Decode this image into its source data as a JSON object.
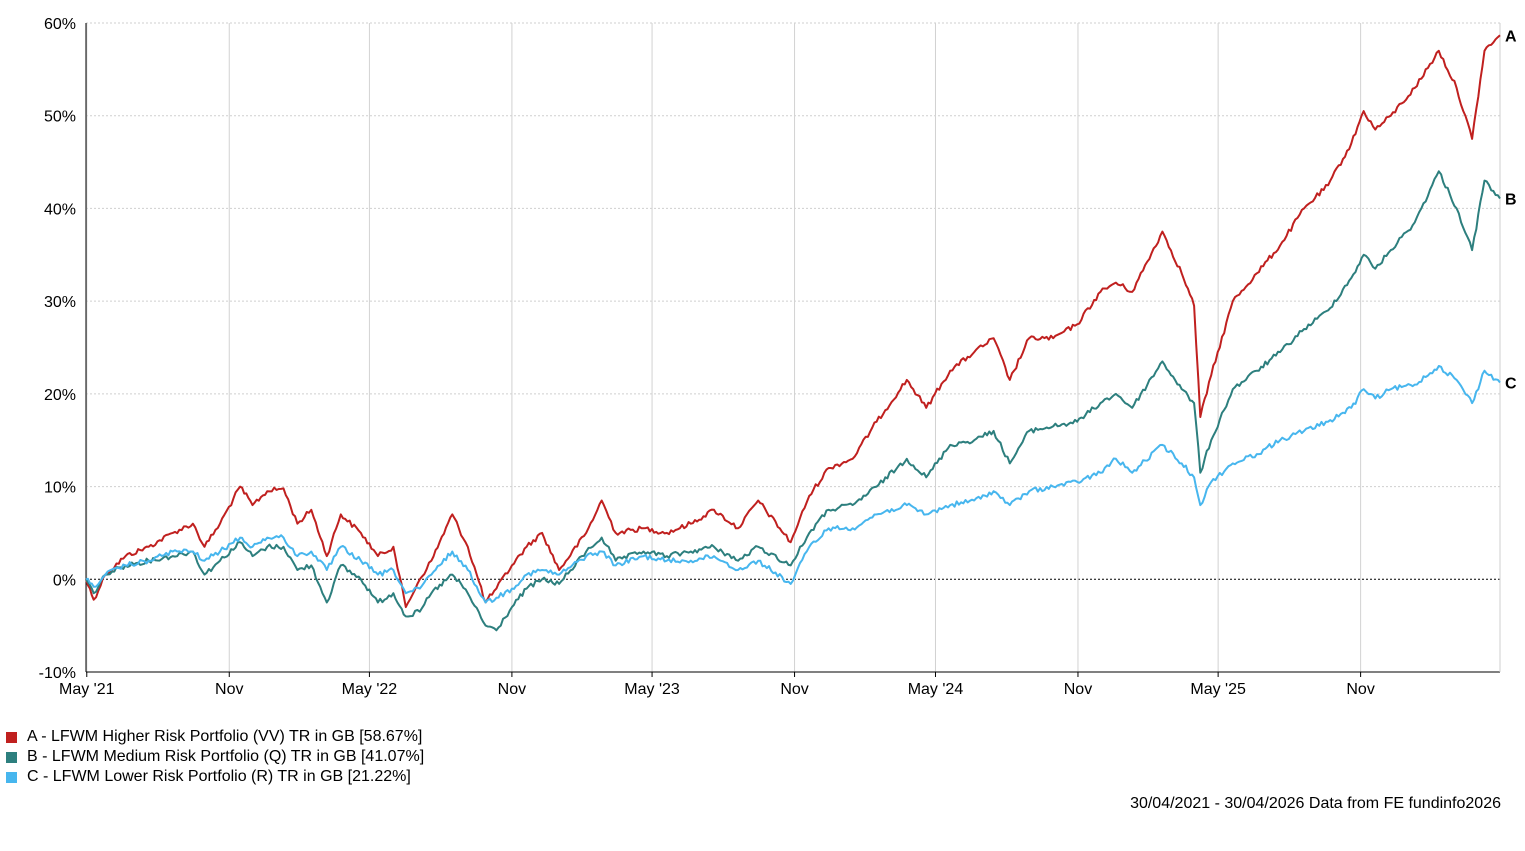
{
  "chart_data": {
    "type": "line",
    "x_range": [
      "2021-04-30",
      "2026-04-30"
    ],
    "ylim": [
      -10,
      60
    ],
    "y_ticks": [
      -10,
      0,
      10,
      20,
      30,
      40,
      50,
      60
    ],
    "y_tick_labels": [
      "-10%",
      "0%",
      "10%",
      "20%",
      "30%",
      "40%",
      "50%",
      "60%"
    ],
    "x_ticks": [
      {
        "date": "2021-05-01",
        "label": "May '21"
      },
      {
        "date": "2021-11-01",
        "label": "Nov"
      },
      {
        "date": "2022-05-01",
        "label": "May '22"
      },
      {
        "date": "2022-11-01",
        "label": "Nov"
      },
      {
        "date": "2023-05-01",
        "label": "May '23"
      },
      {
        "date": "2023-11-01",
        "label": "Nov"
      },
      {
        "date": "2024-05-01",
        "label": "May '24"
      },
      {
        "date": "2024-11-01",
        "label": "Nov"
      },
      {
        "date": "2025-05-01",
        "label": "May '25"
      },
      {
        "date": "2025-11-01",
        "label": "Nov"
      }
    ],
    "grid": true,
    "legend_position": "bottom-left",
    "series": [
      {
        "name": "A - LFWM Higher Risk Portfolio (VV) TR in GB [58.67%]",
        "end_label": "A",
        "color": "#c0201f",
        "points": [
          [
            "2021-04-30",
            0
          ],
          [
            "2021-05-10",
            -2.2
          ],
          [
            "2021-05-25",
            0.5
          ],
          [
            "2021-06-20",
            2.5
          ],
          [
            "2021-07-20",
            3.5
          ],
          [
            "2021-08-20",
            5.0
          ],
          [
            "2021-09-15",
            6.0
          ],
          [
            "2021-09-30",
            3.5
          ],
          [
            "2021-10-20",
            6.0
          ],
          [
            "2021-11-15",
            10.0
          ],
          [
            "2021-12-01",
            8.0
          ],
          [
            "2021-12-20",
            9.5
          ],
          [
            "2022-01-10",
            9.8
          ],
          [
            "2022-01-28",
            6.0
          ],
          [
            "2022-02-15",
            7.5
          ],
          [
            "2022-03-07",
            2.5
          ],
          [
            "2022-03-25",
            7.0
          ],
          [
            "2022-04-20",
            5.0
          ],
          [
            "2022-05-12",
            2.5
          ],
          [
            "2022-06-01",
            3.5
          ],
          [
            "2022-06-17",
            -3.0
          ],
          [
            "2022-07-05",
            0
          ],
          [
            "2022-07-20",
            2.0
          ],
          [
            "2022-08-16",
            7.0
          ],
          [
            "2022-09-05",
            3.5
          ],
          [
            "2022-09-28",
            -2.5
          ],
          [
            "2022-10-12",
            -1.0
          ],
          [
            "2022-11-01",
            1.5
          ],
          [
            "2022-11-20",
            3.5
          ],
          [
            "2022-12-10",
            5.0
          ],
          [
            "2023-01-01",
            1.0
          ],
          [
            "2023-02-05",
            5.0
          ],
          [
            "2023-02-25",
            8.5
          ],
          [
            "2023-03-15",
            5.0
          ],
          [
            "2023-04-20",
            5.5
          ],
          [
            "2023-05-20",
            5.0
          ],
          [
            "2023-06-20",
            6.0
          ],
          [
            "2023-07-20",
            7.5
          ],
          [
            "2023-08-20",
            5.5
          ],
          [
            "2023-09-15",
            8.5
          ],
          [
            "2023-10-27",
            4.0
          ],
          [
            "2023-11-20",
            9.0
          ],
          [
            "2023-12-15",
            12.0
          ],
          [
            "2024-01-15",
            13.0
          ],
          [
            "2024-02-15",
            17.0
          ],
          [
            "2024-03-25",
            21.5
          ],
          [
            "2024-04-19",
            18.5
          ],
          [
            "2024-05-20",
            22.5
          ],
          [
            "2024-06-20",
            24.5
          ],
          [
            "2024-07-15",
            26.0
          ],
          [
            "2024-08-05",
            21.5
          ],
          [
            "2024-08-30",
            26.0
          ],
          [
            "2024-09-30",
            26.0
          ],
          [
            "2024-10-31",
            27.5
          ],
          [
            "2024-11-30",
            31.0
          ],
          [
            "2024-12-20",
            32.0
          ],
          [
            "2025-01-10",
            31.0
          ],
          [
            "2025-02-18",
            37.5
          ],
          [
            "2025-03-15",
            33.0
          ],
          [
            "2025-03-31",
            29.5
          ],
          [
            "2025-04-08",
            17.5
          ],
          [
            "2025-04-22",
            22.0
          ],
          [
            "2025-05-20",
            30.0
          ],
          [
            "2025-06-20",
            33.0
          ],
          [
            "2025-07-20",
            36.0
          ],
          [
            "2025-08-20",
            40.0
          ],
          [
            "2025-09-20",
            42.5
          ],
          [
            "2025-10-20",
            47.0
          ],
          [
            "2025-11-05",
            50.5
          ],
          [
            "2025-11-20",
            48.5
          ],
          [
            "2025-12-10",
            50.0
          ],
          [
            "2026-01-10",
            53.0
          ],
          [
            "2026-02-10",
            57.0
          ],
          [
            "2026-03-05",
            53.0
          ],
          [
            "2026-03-25",
            47.5
          ],
          [
            "2026-04-10",
            57.0
          ],
          [
            "2026-04-30",
            58.67
          ]
        ]
      },
      {
        "name": "B - LFWM Medium Risk Portfolio (Q) TR in GB [41.07%]",
        "end_label": "B",
        "color": "#2d7f7e",
        "points": [
          [
            "2021-04-30",
            0
          ],
          [
            "2021-05-10",
            -1.5
          ],
          [
            "2021-05-25",
            0.5
          ],
          [
            "2021-06-20",
            1.5
          ],
          [
            "2021-07-20",
            2.0
          ],
          [
            "2021-08-20",
            2.5
          ],
          [
            "2021-09-15",
            3.0
          ],
          [
            "2021-09-30",
            0.5
          ],
          [
            "2021-10-20",
            2.0
          ],
          [
            "2021-11-15",
            4.0
          ],
          [
            "2021-12-01",
            2.5
          ],
          [
            "2021-12-20",
            3.5
          ],
          [
            "2022-01-10",
            3.5
          ],
          [
            "2022-01-28",
            1.0
          ],
          [
            "2022-02-15",
            1.5
          ],
          [
            "2022-03-07",
            -2.5
          ],
          [
            "2022-03-25",
            1.5
          ],
          [
            "2022-04-20",
            0
          ],
          [
            "2022-05-12",
            -2.5
          ],
          [
            "2022-06-01",
            -1.5
          ],
          [
            "2022-06-17",
            -4.0
          ],
          [
            "2022-07-05",
            -3.5
          ],
          [
            "2022-07-20",
            -1.5
          ],
          [
            "2022-08-16",
            0.5
          ],
          [
            "2022-09-05",
            -1.5
          ],
          [
            "2022-09-28",
            -5.0
          ],
          [
            "2022-10-12",
            -5.5
          ],
          [
            "2022-11-01",
            -3.0
          ],
          [
            "2022-11-20",
            -1.0
          ],
          [
            "2022-12-10",
            0
          ],
          [
            "2023-01-01",
            -0.5
          ],
          [
            "2023-02-05",
            3.0
          ],
          [
            "2023-02-25",
            4.5
          ],
          [
            "2023-03-15",
            2.0
          ],
          [
            "2023-04-20",
            3.0
          ],
          [
            "2023-05-20",
            2.5
          ],
          [
            "2023-06-20",
            3.0
          ],
          [
            "2023-07-20",
            3.5
          ],
          [
            "2023-08-20",
            2.0
          ],
          [
            "2023-09-15",
            3.5
          ],
          [
            "2023-10-27",
            1.5
          ],
          [
            "2023-11-20",
            5.0
          ],
          [
            "2023-12-15",
            7.5
          ],
          [
            "2024-01-15",
            8.0
          ],
          [
            "2024-02-15",
            10.0
          ],
          [
            "2024-03-25",
            13.0
          ],
          [
            "2024-04-19",
            11.0
          ],
          [
            "2024-05-20",
            14.5
          ],
          [
            "2024-06-20",
            15.0
          ],
          [
            "2024-07-15",
            16.0
          ],
          [
            "2024-08-05",
            12.5
          ],
          [
            "2024-08-30",
            16.0
          ],
          [
            "2024-09-30",
            16.5
          ],
          [
            "2024-10-31",
            17.0
          ],
          [
            "2024-11-30",
            19.0
          ],
          [
            "2024-12-20",
            20.0
          ],
          [
            "2025-01-10",
            18.5
          ],
          [
            "2025-02-18",
            23.5
          ],
          [
            "2025-03-15",
            20.5
          ],
          [
            "2025-03-31",
            19.0
          ],
          [
            "2025-04-08",
            11.5
          ],
          [
            "2025-04-22",
            15.0
          ],
          [
            "2025-05-20",
            20.5
          ],
          [
            "2025-06-20",
            22.5
          ],
          [
            "2025-07-20",
            24.5
          ],
          [
            "2025-08-20",
            27.0
          ],
          [
            "2025-09-20",
            29.0
          ],
          [
            "2025-10-20",
            32.5
          ],
          [
            "2025-11-05",
            35.0
          ],
          [
            "2025-11-20",
            33.5
          ],
          [
            "2025-12-10",
            35.5
          ],
          [
            "2026-01-10",
            38.5
          ],
          [
            "2026-02-10",
            44.0
          ],
          [
            "2026-03-05",
            40.0
          ],
          [
            "2026-03-25",
            35.5
          ],
          [
            "2026-04-10",
            43.0
          ],
          [
            "2026-04-30",
            41.07
          ]
        ]
      },
      {
        "name": "C - LFWM Lower Risk Portfolio (R) TR in GB [21.22%]",
        "end_label": "C",
        "color": "#47b6ee",
        "points": [
          [
            "2021-04-30",
            0
          ],
          [
            "2021-05-10",
            -0.8
          ],
          [
            "2021-05-25",
            0.5
          ],
          [
            "2021-06-20",
            1.5
          ],
          [
            "2021-07-20",
            2.0
          ],
          [
            "2021-08-20",
            3.0
          ],
          [
            "2021-09-15",
            3.0
          ],
          [
            "2021-09-30",
            2.0
          ],
          [
            "2021-10-20",
            3.0
          ],
          [
            "2021-11-15",
            4.5
          ],
          [
            "2021-12-01",
            3.5
          ],
          [
            "2021-12-20",
            4.5
          ],
          [
            "2022-01-10",
            4.5
          ],
          [
            "2022-01-28",
            2.5
          ],
          [
            "2022-02-15",
            3.0
          ],
          [
            "2022-03-07",
            1.0
          ],
          [
            "2022-03-25",
            3.5
          ],
          [
            "2022-04-20",
            2.0
          ],
          [
            "2022-05-12",
            0.5
          ],
          [
            "2022-06-01",
            1.0
          ],
          [
            "2022-06-17",
            -1.5
          ],
          [
            "2022-07-05",
            -1.0
          ],
          [
            "2022-07-20",
            0.5
          ],
          [
            "2022-08-16",
            3.0
          ],
          [
            "2022-09-05",
            1.0
          ],
          [
            "2022-09-28",
            -2.5
          ],
          [
            "2022-10-12",
            -2.0
          ],
          [
            "2022-11-01",
            -1.0
          ],
          [
            "2022-11-20",
            0.5
          ],
          [
            "2022-12-10",
            1.0
          ],
          [
            "2023-01-01",
            0.5
          ],
          [
            "2023-02-05",
            2.5
          ],
          [
            "2023-02-25",
            3.0
          ],
          [
            "2023-03-15",
            1.5
          ],
          [
            "2023-04-20",
            2.5
          ],
          [
            "2023-05-20",
            2.0
          ],
          [
            "2023-06-20",
            2.0
          ],
          [
            "2023-07-20",
            2.5
          ],
          [
            "2023-08-20",
            1.0
          ],
          [
            "2023-09-15",
            2.0
          ],
          [
            "2023-10-27",
            -0.5
          ],
          [
            "2023-11-20",
            3.5
          ],
          [
            "2023-12-15",
            5.5
          ],
          [
            "2024-01-15",
            5.5
          ],
          [
            "2024-02-15",
            7.0
          ],
          [
            "2024-03-25",
            8.0
          ],
          [
            "2024-04-19",
            7.0
          ],
          [
            "2024-05-20",
            8.0
          ],
          [
            "2024-06-20",
            8.5
          ],
          [
            "2024-07-15",
            9.5
          ],
          [
            "2024-08-05",
            8.0
          ],
          [
            "2024-08-30",
            9.5
          ],
          [
            "2024-09-30",
            10.0
          ],
          [
            "2024-10-31",
            10.5
          ],
          [
            "2024-11-30",
            11.5
          ],
          [
            "2024-12-20",
            13.0
          ],
          [
            "2025-01-10",
            11.5
          ],
          [
            "2025-02-18",
            14.5
          ],
          [
            "2025-03-15",
            12.5
          ],
          [
            "2025-03-31",
            11.0
          ],
          [
            "2025-04-08",
            8.0
          ],
          [
            "2025-04-22",
            10.5
          ],
          [
            "2025-05-20",
            12.5
          ],
          [
            "2025-06-20",
            13.5
          ],
          [
            "2025-07-20",
            15.0
          ],
          [
            "2025-08-20",
            16.0
          ],
          [
            "2025-09-20",
            17.0
          ],
          [
            "2025-10-20",
            18.5
          ],
          [
            "2025-11-05",
            20.5
          ],
          [
            "2025-11-20",
            19.5
          ],
          [
            "2025-12-10",
            20.5
          ],
          [
            "2026-01-10",
            21.0
          ],
          [
            "2026-02-10",
            23.0
          ],
          [
            "2026-03-05",
            21.5
          ],
          [
            "2026-03-25",
            19.0
          ],
          [
            "2026-04-10",
            22.5
          ],
          [
            "2026-04-30",
            21.22
          ]
        ]
      }
    ]
  },
  "footer": {
    "text": "30/04/2021 - 30/04/2026 Data from FE fundinfo2026"
  }
}
